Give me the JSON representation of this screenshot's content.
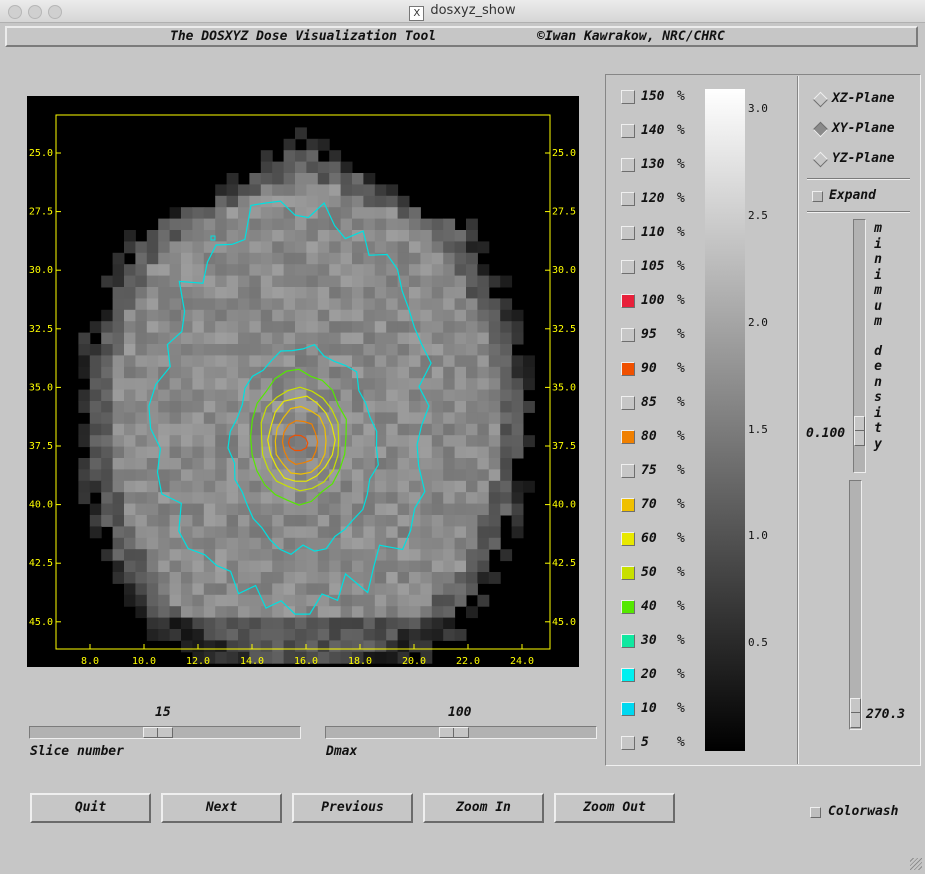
{
  "window": {
    "title": "dosxyz_show"
  },
  "header": {
    "left": "The DOSXYZ Dose Visualization Tool",
    "right": "©Iwan Kawrakow, NRC/CHRC"
  },
  "plot": {
    "axis_color": "#ffff00",
    "y_ticks": [
      "25.0",
      "27.5",
      "30.0",
      "32.5",
      "35.0",
      "37.5",
      "40.0",
      "42.5",
      "45.0"
    ],
    "x_ticks": [
      "8.0",
      "10.0",
      "12.0",
      "14.0",
      "16.0",
      "18.0",
      "20.0",
      "22.0",
      "24.0"
    ],
    "isodose_colors": {
      "20": "#00e0e0",
      "40": "#55e800",
      "50": "#c8e000",
      "60": "#e8e800",
      "70": "#f0c000",
      "80": "#f08000",
      "90": "#f05000"
    }
  },
  "slice": {
    "label": "Slice number",
    "value": "15",
    "fraction": 0.47
  },
  "dmax": {
    "label": "Dmax",
    "value": "100",
    "fraction": 0.47
  },
  "buttons": {
    "quit": "Quit",
    "next": "Next",
    "previous": "Previous",
    "zoom_in": "Zoom In",
    "zoom_out": "Zoom Out"
  },
  "legend": [
    {
      "value": "150",
      "unit": "%",
      "color": null
    },
    {
      "value": "140",
      "unit": "%",
      "color": null
    },
    {
      "value": "130",
      "unit": "%",
      "color": null
    },
    {
      "value": "120",
      "unit": "%",
      "color": null
    },
    {
      "value": "110",
      "unit": "%",
      "color": null
    },
    {
      "value": "105",
      "unit": "%",
      "color": null
    },
    {
      "value": "100",
      "unit": "%",
      "color": "#e8203a"
    },
    {
      "value": "95",
      "unit": "%",
      "color": null
    },
    {
      "value": "90",
      "unit": "%",
      "color": "#f05000"
    },
    {
      "value": "85",
      "unit": "%",
      "color": null
    },
    {
      "value": "80",
      "unit": "%",
      "color": "#f08000"
    },
    {
      "value": "75",
      "unit": "%",
      "color": null
    },
    {
      "value": "70",
      "unit": "%",
      "color": "#f0c000"
    },
    {
      "value": "60",
      "unit": "%",
      "color": "#e8e800"
    },
    {
      "value": "50",
      "unit": "%",
      "color": "#c8e000"
    },
    {
      "value": "40",
      "unit": "%",
      "color": "#55e800"
    },
    {
      "value": "30",
      "unit": "%",
      "color": "#10e8a0"
    },
    {
      "value": "20",
      "unit": "%",
      "color": "#00f0f0"
    },
    {
      "value": "10",
      "unit": "%",
      "color": "#00d8f0"
    },
    {
      "value": "5",
      "unit": "%",
      "color": null
    }
  ],
  "colorbar": {
    "ticks": [
      "3.0",
      "2.5",
      "2.0",
      "1.5",
      "1.0",
      "0.5"
    ],
    "max": 3.1
  },
  "planes": {
    "xz": "XZ-Plane",
    "xy": "XY-Plane",
    "yz": "YZ-Plane",
    "selected": "xy"
  },
  "expand": {
    "label": "Expand",
    "checked": false
  },
  "density": {
    "label": "minimum density",
    "value": "0.100",
    "max_value": "270.3"
  },
  "colorwash": {
    "label": "Colorwash",
    "checked": false
  }
}
